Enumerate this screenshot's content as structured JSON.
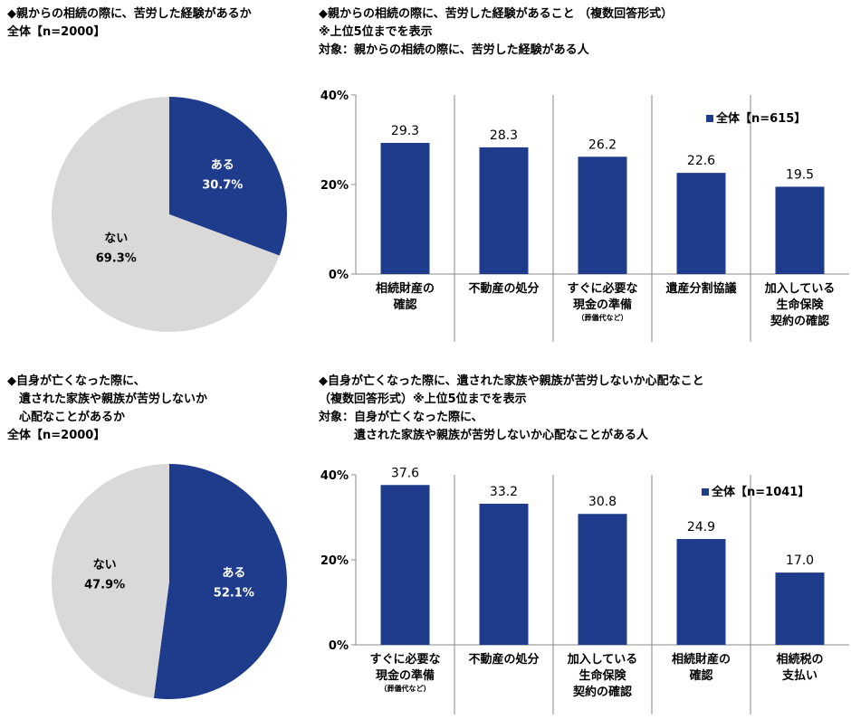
{
  "chart_data": [
    {
      "type": "pie",
      "title": "◆親からの相続の際に、苦労した経験があるか\n全体【n=2000】",
      "categories": [
        "ある",
        "ない"
      ],
      "values": [
        30.7,
        69.3
      ],
      "value_labels": [
        "30.7%",
        "69.3%"
      ],
      "colors": [
        "#1f3c8c",
        "#d9d9d9"
      ]
    },
    {
      "type": "bar",
      "title": "◆親からの相続の際に、苦労した経験があること （複数回答形式）\n※上位5位までを表示\n対象：親からの相続の際に、苦労した経験がある人",
      "categories": [
        "相続財産の\n確認",
        "不動産の処分",
        "すぐに必要な\n現金の準備",
        "遺産分割協議",
        "加入している\n生命保険\n契約の確認"
      ],
      "category_notes": [
        null,
        null,
        "（葬儀代など）",
        null,
        null
      ],
      "series": [
        {
          "name": "全体【n=615】",
          "color": "#1f3c8c",
          "values": [
            29.3,
            28.3,
            26.2,
            22.6,
            19.5
          ]
        }
      ],
      "ylim": [
        0,
        40
      ],
      "yticks": [
        {
          "value": 0,
          "label": "0%"
        },
        {
          "value": 20,
          "label": "20%"
        },
        {
          "value": 40,
          "label": "40%"
        }
      ],
      "legend": "top-right"
    },
    {
      "type": "pie",
      "title": "◆自身が亡くなった際に、\n　遺された家族や親族が苦労しないか\n　心配なことがあるか\n全体【n=2000】",
      "categories": [
        "ある",
        "ない"
      ],
      "values": [
        52.1,
        47.9
      ],
      "value_labels": [
        "52.1%",
        "47.9%"
      ],
      "colors": [
        "#1f3c8c",
        "#d9d9d9"
      ]
    },
    {
      "type": "bar",
      "title": "◆自身が亡くなった際に、遺された家族や親族が苦労しないか心配なこと\n（複数回答形式）※上位5位までを表示\n対象：自身が亡くなった際に、\n　　　遺された家族や親族が苦労しないか心配なことがある人",
      "categories": [
        "すぐに必要な\n現金の準備",
        "不動産の処分",
        "加入している\n生命保険\n契約の確認",
        "相続財産の\n確認",
        "相続税の\n支払い"
      ],
      "category_notes": [
        "（葬儀代など）",
        null,
        null,
        null,
        null
      ],
      "series": [
        {
          "name": "全体【n=1041】",
          "color": "#1f3c8c",
          "values": [
            37.6,
            33.2,
            30.8,
            24.9,
            17.0
          ],
          "value_labels": [
            "37.6",
            "33.2",
            "30.8",
            "24.9",
            "17.0"
          ]
        }
      ],
      "ylim": [
        0,
        40
      ],
      "yticks": [
        {
          "value": 0,
          "label": "0%"
        },
        {
          "value": 20,
          "label": "20%"
        },
        {
          "value": 40,
          "label": "40%"
        }
      ],
      "legend": "top-right"
    }
  ]
}
